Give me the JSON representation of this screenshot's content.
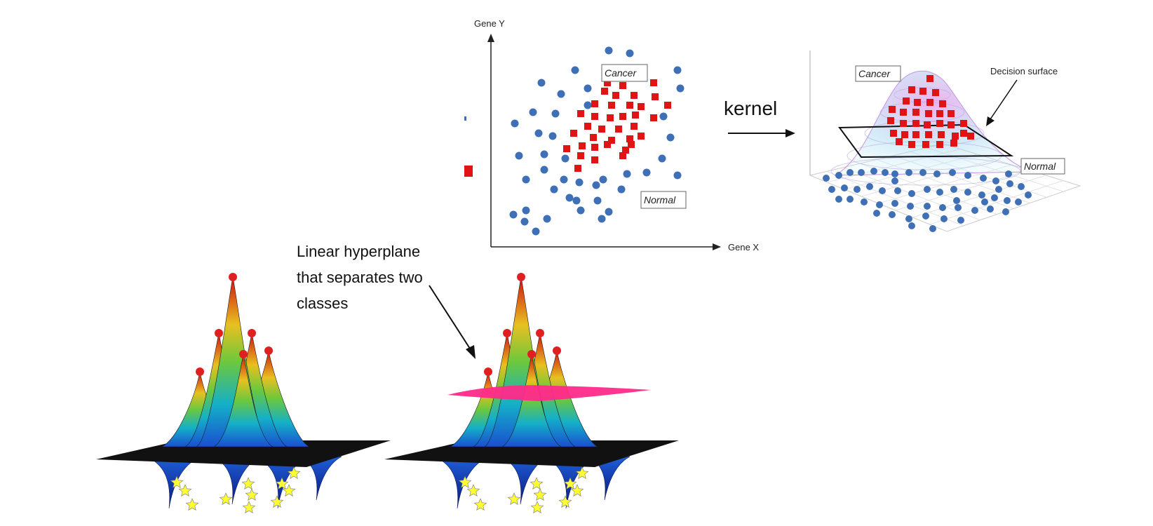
{
  "scatter": {
    "x_axis_label": "Gene X",
    "y_axis_label": "Gene Y",
    "cancer_label": "Cancer",
    "normal_label": "Normal",
    "colors": {
      "cancer": "#e01414",
      "normal": "#3f6fb5"
    }
  },
  "kernel": {
    "label": "kernel"
  },
  "surface3d": {
    "cancer_label": "Cancer",
    "normal_label": "Normal",
    "decision_surface_label": "Decision surface"
  },
  "peaks": {
    "hyperplane_label_lines": [
      "Linear hyperplane",
      "that separates two",
      "classes"
    ],
    "colors": {
      "hyperplane": "#ff2a8a",
      "marker": "#e02020",
      "star": "#ffff33"
    }
  }
}
